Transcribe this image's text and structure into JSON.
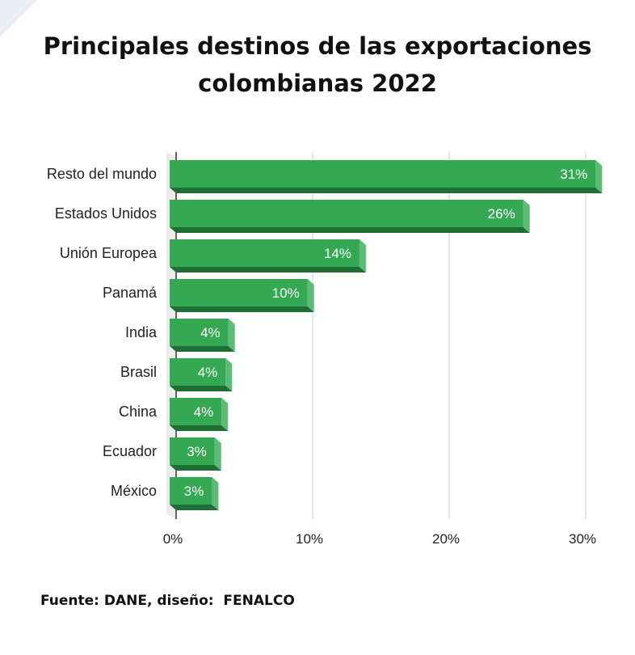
{
  "title": "Principales destinos de las exportaciones colombianas 2022",
  "source": "Fuente: DANE, diseño:  FENALCO",
  "colors": {
    "bar": "#34a853",
    "bar_bottom": "#1f6e35",
    "bar_side": "#5dbb77",
    "grid": "#cccccc"
  },
  "chart_data": {
    "type": "bar",
    "orientation": "horizontal",
    "title": "Principales destinos de las exportaciones colombianas 2022",
    "categories": [
      "Resto del mundo",
      "Estados Unidos",
      "Unión Europea",
      "Panamá",
      "India",
      "Brasil",
      "China",
      "Ecuador",
      "México"
    ],
    "values": [
      31.2,
      25.9,
      13.9,
      10.1,
      4.3,
      4.1,
      3.8,
      3.3,
      3.1
    ],
    "data_labels": [
      "31%",
      "26%",
      "14%",
      "10%",
      "4%",
      "4%",
      "4%",
      "3%",
      "3%"
    ],
    "xlim": [
      0,
      30
    ],
    "xticks": [
      "0%",
      "10%",
      "20%",
      "30%"
    ],
    "xlabel": "",
    "ylabel": "",
    "grid": true,
    "legend": "none"
  }
}
